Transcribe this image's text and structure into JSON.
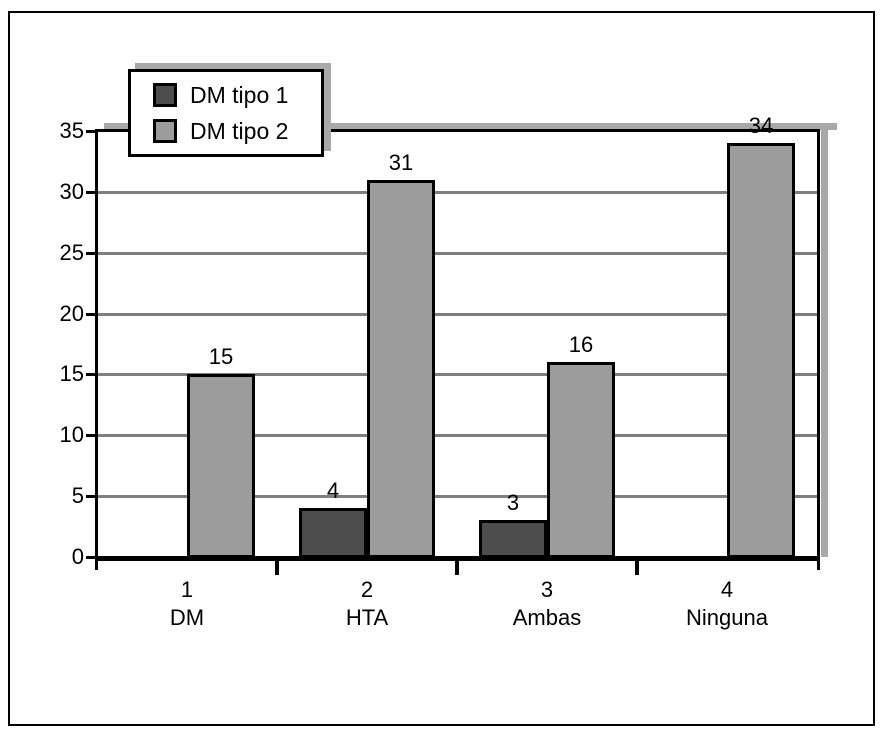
{
  "colors": {
    "series1": "#4d4d4d",
    "series2": "#9c9c9c",
    "gridline": "#7f7f7f",
    "frame_shadow": "#a8a8a8",
    "axis": "#000000",
    "background": "#ffffff"
  },
  "legend": {
    "items": [
      {
        "label": "DM tipo 1",
        "color": "#4d4d4d"
      },
      {
        "label": "DM tipo 2",
        "color": "#9c9c9c"
      }
    ]
  },
  "chart_data": {
    "type": "bar",
    "title": "",
    "xlabel": "",
    "ylabel": "",
    "categories": [
      "DM",
      "HTA",
      "Ambas",
      "Ninguna"
    ],
    "category_numbers": [
      "1",
      "2",
      "3",
      "4"
    ],
    "series": [
      {
        "name": "DM tipo 1",
        "color": "#4d4d4d",
        "values": [
          null,
          4,
          3,
          null
        ]
      },
      {
        "name": "DM tipo 2",
        "color": "#9c9c9c",
        "values": [
          15,
          31,
          16,
          34
        ]
      }
    ],
    "bar_value_labels": {
      "DM tipo 1": [
        "",
        "4",
        "3",
        ""
      ],
      "DM tipo 2": [
        "15",
        "31",
        "16",
        "34"
      ]
    },
    "ylim": [
      0,
      35
    ],
    "ytick_step": 5,
    "ytick_labels": [
      "0",
      "5",
      "10",
      "15",
      "20",
      "25",
      "30",
      "35"
    ],
    "grid": true,
    "legend_position": "top-left"
  }
}
